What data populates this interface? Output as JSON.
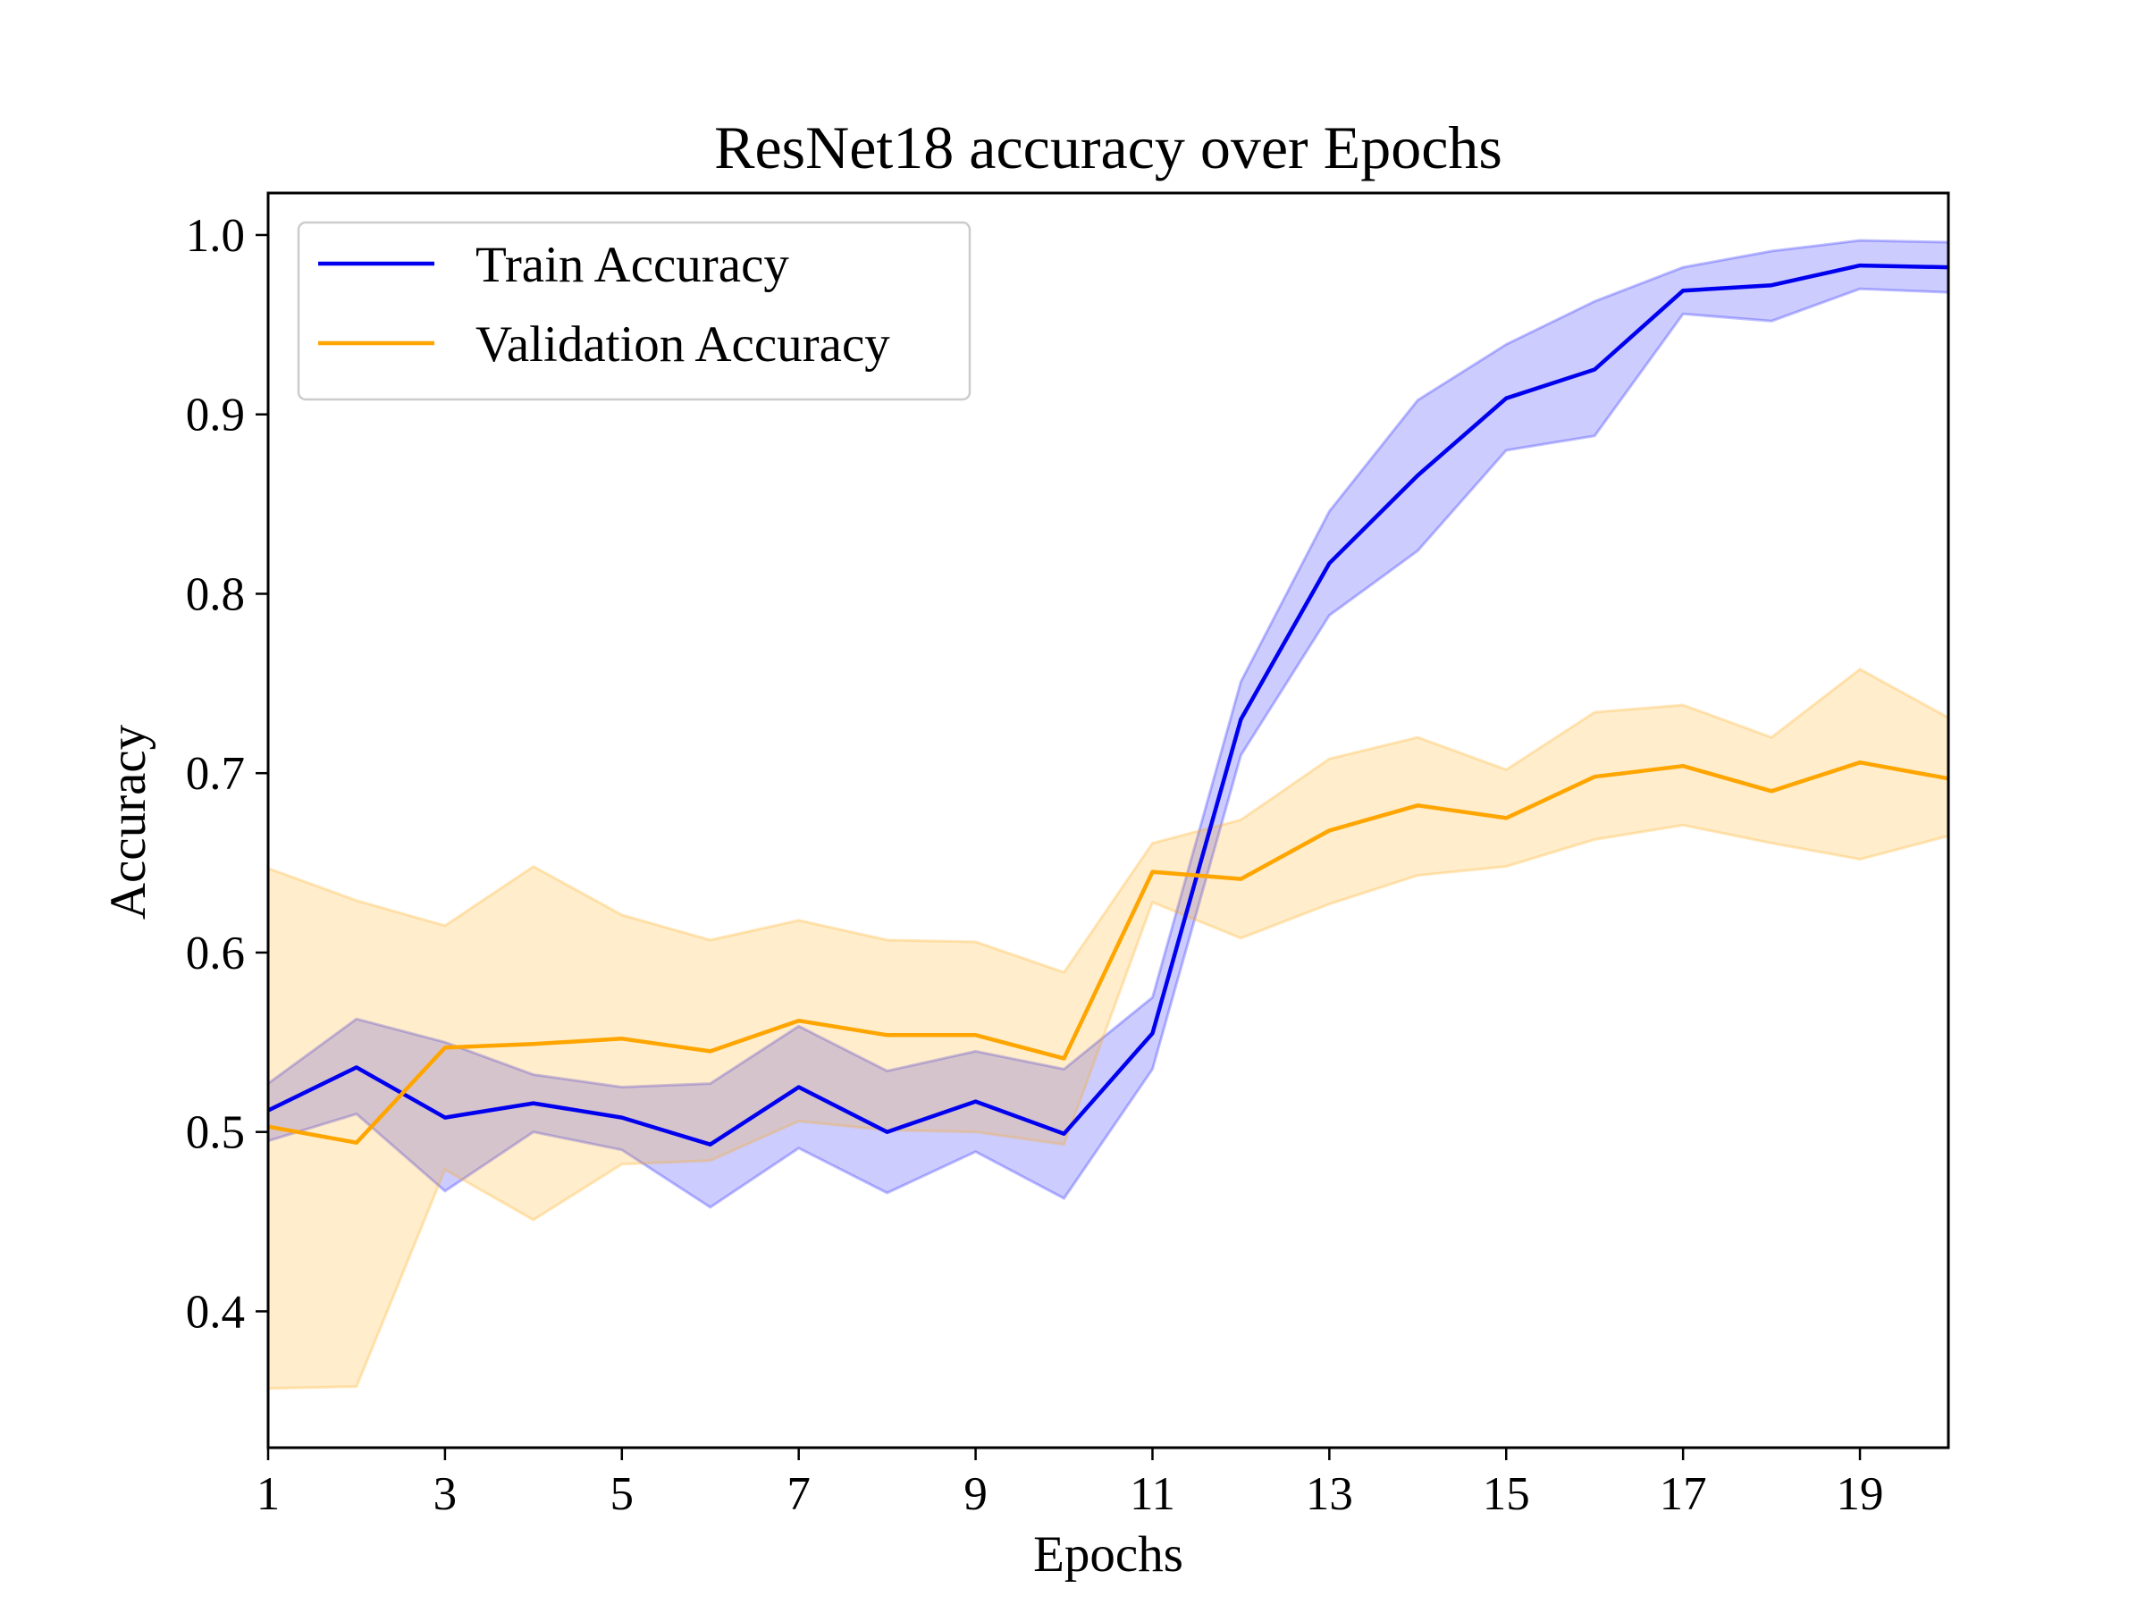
{
  "chart_data": {
    "type": "line",
    "title": "ResNet18 accuracy over Epochs",
    "xlabel": "Epochs",
    "ylabel": "Accuracy",
    "xlim": [
      1,
      20
    ],
    "ylim": [
      0.324,
      1.0234
    ],
    "x": [
      1,
      2,
      3,
      4,
      5,
      6,
      7,
      8,
      9,
      10,
      11,
      12,
      13,
      14,
      15,
      16,
      17,
      18,
      19,
      20
    ],
    "xticks": [
      1,
      3,
      5,
      7,
      9,
      11,
      13,
      15,
      17,
      19
    ],
    "xtick_labels": [
      "1",
      "3",
      "5",
      "7",
      "9",
      "11",
      "13",
      "15",
      "17",
      "19"
    ],
    "yticks": [
      0.4,
      0.5,
      0.6,
      0.7,
      0.8,
      0.9,
      1.0
    ],
    "ytick_labels": [
      "0.4",
      "0.5",
      "0.6",
      "0.7",
      "0.8",
      "0.9",
      "1.0"
    ],
    "grid": false,
    "legend_position": "upper-left",
    "series": [
      {
        "name": "Train Accuracy",
        "color": "#0000ee",
        "band_color": "#0000ff",
        "values": [
          0.512,
          0.536,
          0.508,
          0.516,
          0.508,
          0.493,
          0.525,
          0.5,
          0.517,
          0.499,
          0.555,
          0.73,
          0.817,
          0.866,
          0.909,
          0.925,
          0.969,
          0.972,
          0.983,
          0.982
        ],
        "lower": [
          0.495,
          0.51,
          0.467,
          0.5,
          0.49,
          0.458,
          0.491,
          0.466,
          0.489,
          0.463,
          0.535,
          0.71,
          0.788,
          0.824,
          0.88,
          0.888,
          0.956,
          0.952,
          0.97,
          0.968
        ],
        "upper": [
          0.527,
          0.563,
          0.55,
          0.532,
          0.525,
          0.527,
          0.559,
          0.534,
          0.545,
          0.535,
          0.575,
          0.751,
          0.846,
          0.908,
          0.939,
          0.963,
          0.982,
          0.991,
          0.997,
          0.996
        ]
      },
      {
        "name": "Validation Accuracy",
        "color": "#ffa500",
        "band_color": "#ffa500",
        "values": [
          0.503,
          0.494,
          0.547,
          0.549,
          0.552,
          0.545,
          0.562,
          0.554,
          0.554,
          0.541,
          0.645,
          0.641,
          0.668,
          0.682,
          0.675,
          0.698,
          0.704,
          0.69,
          0.706,
          0.697
        ],
        "lower": [
          0.357,
          0.358,
          0.479,
          0.451,
          0.482,
          0.484,
          0.506,
          0.501,
          0.5,
          0.493,
          0.628,
          0.608,
          0.627,
          0.643,
          0.648,
          0.663,
          0.671,
          0.661,
          0.652,
          0.665
        ],
        "upper": [
          0.647,
          0.629,
          0.615,
          0.648,
          0.621,
          0.607,
          0.618,
          0.607,
          0.606,
          0.589,
          0.661,
          0.674,
          0.708,
          0.72,
          0.702,
          0.734,
          0.738,
          0.72,
          0.758,
          0.731
        ]
      }
    ]
  }
}
